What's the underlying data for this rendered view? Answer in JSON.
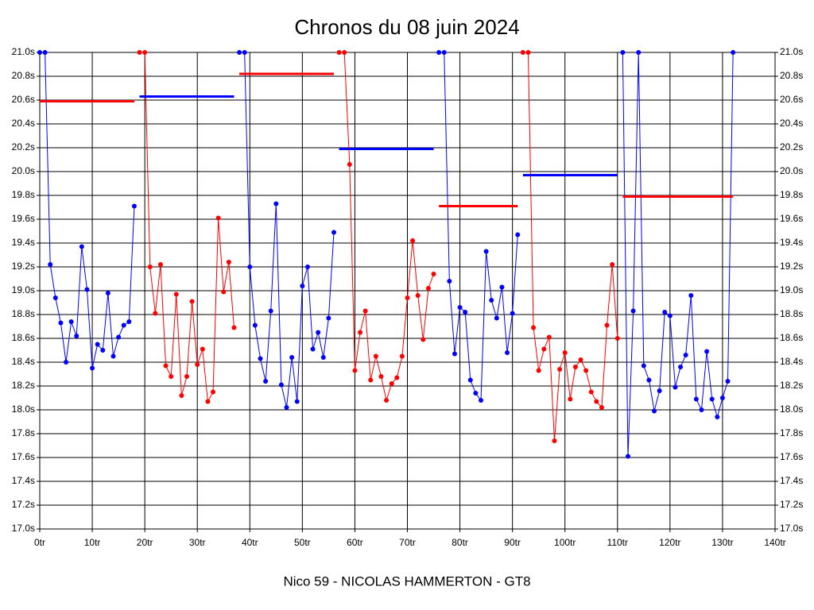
{
  "chart_data": {
    "type": "line",
    "title": "Chronos du 08 juin 2024",
    "xlabel": "Nico 59 - NICOLAS HAMMERTON - GT8",
    "xlim": [
      0,
      140
    ],
    "xticks": [
      {
        "value": 0,
        "label": "0tr"
      },
      {
        "value": 10,
        "label": "10tr"
      },
      {
        "value": 20,
        "label": "20tr"
      },
      {
        "value": 30,
        "label": "30tr"
      },
      {
        "value": 40,
        "label": "40tr"
      },
      {
        "value": 50,
        "label": "50tr"
      },
      {
        "value": 60,
        "label": "60tr"
      },
      {
        "value": 70,
        "label": "70tr"
      },
      {
        "value": 80,
        "label": "80tr"
      },
      {
        "value": 90,
        "label": "90tr"
      },
      {
        "value": 100,
        "label": "100tr"
      },
      {
        "value": 110,
        "label": "110tr"
      },
      {
        "value": 120,
        "label": "120tr"
      },
      {
        "value": 130,
        "label": "130tr"
      },
      {
        "value": 140,
        "label": "140tr"
      }
    ],
    "ylim": [
      17.0,
      21.0
    ],
    "yticks": [
      {
        "value": 17.0,
        "label": "17.0s"
      },
      {
        "value": 17.2,
        "label": "17.2s"
      },
      {
        "value": 17.4,
        "label": "17.4s"
      },
      {
        "value": 17.6,
        "label": "17.6s"
      },
      {
        "value": 17.8,
        "label": "17.8s"
      },
      {
        "value": 18.0,
        "label": "18.0s"
      },
      {
        "value": 18.2,
        "label": "18.2s"
      },
      {
        "value": 18.4,
        "label": "18.4s"
      },
      {
        "value": 18.6,
        "label": "18.6s"
      },
      {
        "value": 18.8,
        "label": "18.8s"
      },
      {
        "value": 19.0,
        "label": "19.0s"
      },
      {
        "value": 19.2,
        "label": "19.2s"
      },
      {
        "value": 19.4,
        "label": "19.4s"
      },
      {
        "value": 19.6,
        "label": "19.6s"
      },
      {
        "value": 19.8,
        "label": "19.8s"
      },
      {
        "value": 20.0,
        "label": "20.0s"
      },
      {
        "value": 20.2,
        "label": "20.2s"
      },
      {
        "value": 20.4,
        "label": "20.4s"
      },
      {
        "value": 20.6,
        "label": "20.6s"
      },
      {
        "value": 20.8,
        "label": "20.8s"
      },
      {
        "value": 21.0,
        "label": "21.0s"
      }
    ],
    "grid": true,
    "series": [
      {
        "color": "#0000ff",
        "x": [
          0,
          1,
          2,
          3,
          4,
          5,
          6,
          7,
          8,
          9,
          10,
          11,
          12,
          13,
          14,
          15,
          16,
          17,
          18
        ],
        "values": [
          21.0,
          21.0,
          19.22,
          18.94,
          18.73,
          18.4,
          18.74,
          18.62,
          19.37,
          19.01,
          18.35,
          18.55,
          18.5,
          18.98,
          18.45,
          18.61,
          18.71,
          18.74,
          19.71
        ]
      },
      {
        "color": "#ff0000",
        "x": [
          19,
          20,
          21,
          22,
          23,
          24,
          25,
          26,
          27,
          28,
          29,
          30,
          31,
          32,
          33,
          34,
          35,
          36,
          37
        ],
        "values": [
          21.0,
          21.0,
          19.2,
          18.81,
          19.22,
          18.37,
          18.28,
          18.97,
          18.12,
          18.28,
          18.91,
          18.38,
          18.51,
          18.07,
          18.15,
          19.61,
          18.99,
          19.24,
          18.69
        ]
      },
      {
        "color": "#0000ff",
        "x": [
          38,
          39,
          40,
          41,
          42,
          43,
          44,
          45,
          46,
          47,
          48,
          49,
          50,
          51,
          52,
          53,
          54,
          55,
          56
        ],
        "values": [
          21.0,
          21.0,
          19.2,
          18.71,
          18.43,
          18.24,
          18.83,
          19.73,
          18.21,
          18.02,
          18.44,
          18.07,
          19.04,
          19.2,
          18.51,
          18.65,
          18.44,
          18.77,
          19.49
        ]
      },
      {
        "color": "#ff0000",
        "x": [
          57,
          58,
          59,
          60,
          61,
          62,
          63,
          64,
          65,
          66,
          67,
          68,
          69,
          70,
          71,
          72,
          73,
          74,
          75
        ],
        "values": [
          21.0,
          21.0,
          20.06,
          18.33,
          18.65,
          18.83,
          18.25,
          18.45,
          18.28,
          18.08,
          18.22,
          18.27,
          18.45,
          18.94,
          19.42,
          18.96,
          18.59,
          19.02,
          19.14
        ]
      },
      {
        "color": "#0000ff",
        "x": [
          76,
          77,
          78,
          79,
          80,
          81,
          82,
          83,
          84,
          85,
          86,
          87,
          88,
          89,
          90,
          91
        ],
        "values": [
          21.0,
          21.0,
          19.08,
          18.47,
          18.86,
          18.82,
          18.25,
          18.14,
          18.08,
          19.33,
          18.92,
          18.77,
          19.03,
          18.48,
          18.81,
          19.47
        ]
      },
      {
        "color": "#ff0000",
        "x": [
          92,
          93,
          94,
          95,
          96,
          97,
          98,
          99,
          100,
          101,
          102,
          103,
          104,
          105,
          106,
          107,
          108,
          109,
          110
        ],
        "values": [
          21.0,
          21.0,
          18.69,
          18.33,
          18.51,
          18.61,
          17.74,
          18.34,
          18.48,
          18.09,
          18.36,
          18.42,
          18.33,
          18.15,
          18.07,
          18.02,
          18.71,
          19.22,
          18.6
        ]
      },
      {
        "color": "#0000ff",
        "x": [
          111,
          112,
          113,
          114,
          115,
          116,
          117,
          118,
          119,
          120,
          121,
          122,
          123,
          124,
          125,
          126,
          127,
          128,
          129,
          130,
          131,
          132
        ],
        "values": [
          21.0,
          17.61,
          18.83,
          21.0,
          18.37,
          18.25,
          17.99,
          18.16,
          18.82,
          18.79,
          18.19,
          18.36,
          18.46,
          18.96,
          18.09,
          18.0,
          18.49,
          18.09,
          17.94,
          18.1,
          18.24,
          21.0
        ]
      }
    ],
    "averages": [
      {
        "color": "#ff0000",
        "value": 20.59,
        "x": [
          0,
          18
        ]
      },
      {
        "color": "#0000ff",
        "value": 20.63,
        "x": [
          19,
          37
        ]
      },
      {
        "color": "#ff0000",
        "value": 20.82,
        "x": [
          38,
          56
        ]
      },
      {
        "color": "#0000ff",
        "value": 20.19,
        "x": [
          57,
          75
        ]
      },
      {
        "color": "#ff0000",
        "value": 19.71,
        "x": [
          76,
          91
        ]
      },
      {
        "color": "#0000ff",
        "value": 19.97,
        "x": [
          92,
          110
        ]
      },
      {
        "color": "#ff0000",
        "value": 19.79,
        "x": [
          111,
          132
        ]
      }
    ]
  }
}
